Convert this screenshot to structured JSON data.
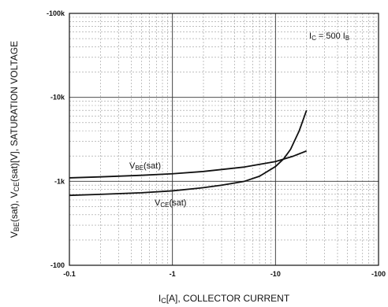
{
  "chart_data": {
    "type": "line",
    "scale": {
      "x": "log",
      "y": "log"
    },
    "xlim": [
      -0.1,
      -100
    ],
    "ylim": [
      -100,
      -100000
    ],
    "x_ticks": [
      {
        "value": -0.1,
        "label": "-0.1"
      },
      {
        "value": -1,
        "label": "-1"
      },
      {
        "value": -10,
        "label": "-10"
      },
      {
        "value": -100,
        "label": "-100"
      }
    ],
    "y_ticks": [
      {
        "value": -100,
        "label": "-100"
      },
      {
        "value": -1000,
        "label": "-1k"
      },
      {
        "value": -10000,
        "label": "-10k"
      },
      {
        "value": -100000,
        "label": "-100k"
      }
    ],
    "xlabel": {
      "sub": "C",
      "main": "[A], COLLECTOR CURRENT",
      "prefix": "I"
    },
    "ylabel": {
      "parts": [
        {
          "t": "V",
          "sub": false
        },
        {
          "t": "BE",
          "sub": true
        },
        {
          "t": "(sat), V",
          "sub": false
        },
        {
          "t": "CE",
          "sub": true
        },
        {
          "t": "(sat)[V], SATURATION VOLTAGE",
          "sub": false
        }
      ]
    },
    "annotation": {
      "parts": [
        {
          "t": "I",
          "sub": false
        },
        {
          "t": "C",
          "sub": true
        },
        {
          "t": " = 500 I",
          "sub": false
        },
        {
          "t": "B",
          "sub": true
        }
      ]
    },
    "grid": true,
    "series": [
      {
        "label": [
          {
            "t": "V",
            "sub": false
          },
          {
            "t": "BE",
            "sub": true
          },
          {
            "t": "(sat)",
            "sub": false
          }
        ],
        "x": [
          -0.1,
          -0.2,
          -0.5,
          -1,
          -2,
          -5,
          -10,
          -15,
          -20
        ],
        "y": [
          -1100,
          -1130,
          -1180,
          -1230,
          -1310,
          -1480,
          -1720,
          -2000,
          -2300
        ]
      },
      {
        "label": [
          {
            "t": "V",
            "sub": false
          },
          {
            "t": "CE",
            "sub": true
          },
          {
            "t": "(sat)",
            "sub": false
          }
        ],
        "x": [
          -0.1,
          -0.2,
          -0.5,
          -1,
          -2,
          -3,
          -5,
          -7,
          -10,
          -12,
          -14,
          -17,
          -20
        ],
        "y": [
          -680,
          -700,
          -730,
          -770,
          -840,
          -900,
          -1000,
          -1150,
          -1500,
          -1850,
          -2400,
          -4000,
          -7000
        ]
      }
    ]
  }
}
